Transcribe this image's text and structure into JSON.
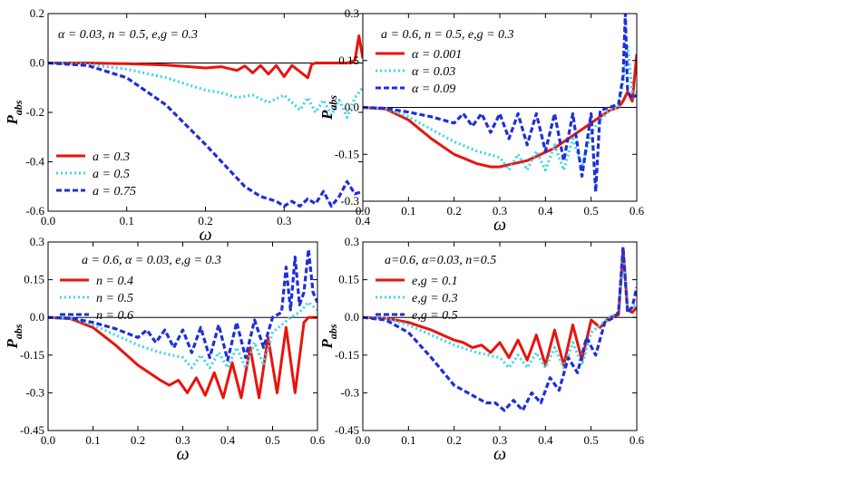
{
  "chart_data": [
    {
      "id": "p1",
      "type": "line",
      "annotation": "α = 0.03, n = 0.5, e,g = 0.3",
      "xlabel": "ω",
      "ylabel": "P",
      "ylabel_sub": "abs",
      "xlim": [
        0,
        0.4
      ],
      "ylim": [
        -0.6,
        0.2
      ],
      "xticks": [
        0.0,
        0.1,
        0.2,
        0.3,
        0.4
      ],
      "yticks": [
        -0.6,
        -0.4,
        -0.2,
        0.0,
        0.2
      ],
      "xtick_labels": [
        "0.0",
        "0.1",
        "0.2",
        "0.3",
        "0.4"
      ],
      "ytick_labels": [
        "-0.6",
        "-0.4",
        "-0.2",
        "0.0",
        "0.2"
      ],
      "legend_position": "bottom-left",
      "zero_line": true,
      "series": [
        {
          "name": "a = 0.3",
          "color": "#e8140c",
          "style": "solid",
          "x": [
            0,
            0.05,
            0.1,
            0.15,
            0.18,
            0.2,
            0.22,
            0.24,
            0.25,
            0.26,
            0.27,
            0.28,
            0.29,
            0.3,
            0.31,
            0.32,
            0.33,
            0.335,
            0.34,
            0.36,
            0.38,
            0.39,
            0.395,
            0.4
          ],
          "y": [
            0,
            0,
            -0.003,
            -0.008,
            -0.015,
            -0.02,
            -0.015,
            -0.03,
            -0.012,
            -0.04,
            -0.01,
            -0.045,
            -0.01,
            -0.055,
            -0.01,
            -0.035,
            -0.06,
            -0.005,
            0,
            0,
            0,
            0.01,
            0.11,
            0.02
          ]
        },
        {
          "name": "a = 0.5",
          "color": "#3fd4e8",
          "style": "dotted",
          "x": [
            0,
            0.05,
            0.1,
            0.15,
            0.2,
            0.22,
            0.24,
            0.26,
            0.28,
            0.3,
            0.32,
            0.33,
            0.34,
            0.35,
            0.36,
            0.37,
            0.38,
            0.39,
            0.4
          ],
          "y": [
            0,
            -0.005,
            -0.025,
            -0.06,
            -0.11,
            -0.12,
            -0.14,
            -0.13,
            -0.16,
            -0.13,
            -0.19,
            -0.14,
            -0.2,
            -0.15,
            -0.21,
            -0.15,
            -0.22,
            -0.14,
            -0.1
          ]
        },
        {
          "name": "a = 0.75",
          "color": "#1f2fd8",
          "style": "dashed",
          "x": [
            0,
            0.05,
            0.1,
            0.15,
            0.2,
            0.25,
            0.27,
            0.29,
            0.3,
            0.31,
            0.32,
            0.33,
            0.34,
            0.35,
            0.36,
            0.37,
            0.38,
            0.39,
            0.4
          ],
          "y": [
            0,
            -0.01,
            -0.06,
            -0.17,
            -0.33,
            -0.5,
            -0.54,
            -0.56,
            -0.58,
            -0.56,
            -0.58,
            -0.55,
            -0.57,
            -0.52,
            -0.58,
            -0.54,
            -0.48,
            -0.53,
            -0.52
          ]
        }
      ]
    },
    {
      "id": "p2",
      "type": "line",
      "annotation": "a = 0.6, n = 0.5, e,g = 0.3",
      "xlabel": "ω",
      "ylabel": "P",
      "ylabel_sub": "abs",
      "xlim": [
        0,
        0.6
      ],
      "ylim": [
        -0.3,
        0.3
      ],
      "xticks": [
        0.0,
        0.1,
        0.2,
        0.3,
        0.4,
        0.5,
        0.6
      ],
      "yticks": [
        -0.3,
        -0.15,
        0.0,
        0.15,
        0.3
      ],
      "xtick_labels": [
        "0.0",
        "0.1",
        "0.2",
        "0.3",
        "0.4",
        "0.5",
        "0.6"
      ],
      "ytick_labels": [
        "-0.3",
        "-0.15",
        "0.0",
        "0.15",
        "0.3"
      ],
      "legend_position": "top-left",
      "zero_line": true,
      "series": [
        {
          "name": "α = 0.001",
          "color": "#e8140c",
          "style": "solid",
          "x": [
            0,
            0.05,
            0.1,
            0.15,
            0.2,
            0.25,
            0.28,
            0.3,
            0.33,
            0.36,
            0.39,
            0.42,
            0.44,
            0.46,
            0.48,
            0.5,
            0.52,
            0.54,
            0.56,
            0.57,
            0.58,
            0.59,
            0.6
          ],
          "y": [
            0,
            -0.005,
            -0.04,
            -0.1,
            -0.15,
            -0.18,
            -0.19,
            -0.19,
            -0.18,
            -0.17,
            -0.15,
            -0.13,
            -0.11,
            -0.09,
            -0.07,
            -0.05,
            -0.03,
            -0.01,
            0,
            0.02,
            0.05,
            0.02,
            0.17
          ]
        },
        {
          "name": "α = 0.03",
          "color": "#3fd4e8",
          "style": "dotted",
          "x": [
            0,
            0.05,
            0.1,
            0.15,
            0.2,
            0.25,
            0.3,
            0.32,
            0.34,
            0.36,
            0.38,
            0.4,
            0.42,
            0.44,
            0.46,
            0.48,
            0.5,
            0.52,
            0.54,
            0.56,
            0.57,
            0.58,
            0.59,
            0.6
          ],
          "y": [
            0,
            -0.003,
            -0.03,
            -0.07,
            -0.11,
            -0.14,
            -0.16,
            -0.2,
            -0.15,
            -0.2,
            -0.14,
            -0.2,
            -0.12,
            -0.2,
            -0.1,
            -0.19,
            -0.08,
            -0.04,
            -0.01,
            0,
            0.08,
            0.2,
            0.05,
            0.05
          ]
        },
        {
          "name": "α = 0.09",
          "color": "#1f2fd8",
          "style": "dashed",
          "x": [
            0,
            0.05,
            0.1,
            0.15,
            0.2,
            0.22,
            0.24,
            0.26,
            0.28,
            0.3,
            0.32,
            0.34,
            0.36,
            0.38,
            0.4,
            0.42,
            0.44,
            0.46,
            0.48,
            0.5,
            0.51,
            0.52,
            0.54,
            0.56,
            0.57,
            0.575,
            0.58,
            0.59,
            0.6
          ],
          "y": [
            0,
            -0.003,
            -0.015,
            -0.03,
            -0.05,
            -0.02,
            -0.06,
            -0.02,
            -0.08,
            -0.02,
            -0.1,
            -0.02,
            -0.12,
            -0.02,
            -0.14,
            -0.02,
            -0.17,
            -0.02,
            -0.22,
            -0.02,
            -0.27,
            -0.01,
            0,
            0.01,
            0.1,
            0.3,
            0.05,
            0.03,
            0.04
          ]
        }
      ]
    },
    {
      "id": "p3",
      "type": "line",
      "annotation": "a = 0.6, α = 0.03, e,g = 0.3",
      "xlabel": "ω",
      "ylabel": "P",
      "ylabel_sub": "abs",
      "xlim": [
        0,
        0.6
      ],
      "ylim": [
        -0.45,
        0.3
      ],
      "xticks": [
        0.0,
        0.1,
        0.2,
        0.3,
        0.4,
        0.5,
        0.6
      ],
      "yticks": [
        -0.45,
        -0.3,
        -0.15,
        0.0,
        0.15,
        0.3
      ],
      "xtick_labels": [
        "0.0",
        "0.1",
        "0.2",
        "0.3",
        "0.4",
        "0.5",
        "0.6"
      ],
      "ytick_labels": [
        "-0.45",
        "-0.3",
        "-0.15",
        "0.0",
        "0.15",
        "0.3"
      ],
      "legend_position": "top-left",
      "zero_line": true,
      "series": [
        {
          "name": "n = 0.4",
          "color": "#e8140c",
          "style": "solid",
          "x": [
            0,
            0.05,
            0.1,
            0.15,
            0.2,
            0.25,
            0.27,
            0.29,
            0.31,
            0.33,
            0.35,
            0.37,
            0.39,
            0.41,
            0.43,
            0.45,
            0.47,
            0.49,
            0.51,
            0.53,
            0.55,
            0.57,
            0.58,
            0.59,
            0.6
          ],
          "y": [
            0,
            -0.005,
            -0.04,
            -0.11,
            -0.19,
            -0.25,
            -0.27,
            -0.25,
            -0.3,
            -0.24,
            -0.31,
            -0.22,
            -0.32,
            -0.18,
            -0.32,
            -0.12,
            -0.32,
            -0.08,
            -0.3,
            -0.04,
            -0.3,
            -0.02,
            0,
            0,
            0
          ]
        },
        {
          "name": "n = 0.5",
          "color": "#3fd4e8",
          "style": "dotted",
          "x": [
            0,
            0.05,
            0.1,
            0.15,
            0.2,
            0.25,
            0.3,
            0.32,
            0.34,
            0.36,
            0.38,
            0.4,
            0.42,
            0.44,
            0.46,
            0.48,
            0.5,
            0.52,
            0.54,
            0.56,
            0.58,
            0.6
          ],
          "y": [
            0,
            -0.003,
            -0.03,
            -0.07,
            -0.11,
            -0.14,
            -0.16,
            -0.2,
            -0.15,
            -0.2,
            -0.14,
            -0.2,
            -0.12,
            -0.2,
            -0.1,
            -0.19,
            -0.06,
            -0.03,
            0,
            0.02,
            0.06,
            0.03
          ]
        },
        {
          "name": "n = 0.6",
          "color": "#1f2fd8",
          "style": "dashed",
          "x": [
            0,
            0.05,
            0.1,
            0.15,
            0.2,
            0.22,
            0.24,
            0.26,
            0.28,
            0.3,
            0.32,
            0.34,
            0.36,
            0.38,
            0.4,
            0.42,
            0.44,
            0.46,
            0.48,
            0.5,
            0.52,
            0.53,
            0.54,
            0.55,
            0.56,
            0.57,
            0.58,
            0.59,
            0.6
          ],
          "y": [
            0,
            -0.003,
            -0.02,
            -0.045,
            -0.08,
            -0.05,
            -0.1,
            -0.05,
            -0.12,
            -0.05,
            -0.14,
            -0.04,
            -0.16,
            -0.03,
            -0.17,
            -0.02,
            -0.16,
            -0.01,
            -0.12,
            0,
            0.02,
            0.2,
            0.03,
            0.24,
            0.05,
            0.1,
            0.27,
            0.1,
            0.06
          ]
        }
      ]
    },
    {
      "id": "p4",
      "type": "line",
      "annotation": "a=0.6, α=0.03, n=0.5",
      "xlabel": "ω",
      "ylabel": "P",
      "ylabel_sub": "abs",
      "xlim": [
        0,
        0.6
      ],
      "ylim": [
        -0.45,
        0.3
      ],
      "xticks": [
        0.0,
        0.1,
        0.2,
        0.3,
        0.4,
        0.5,
        0.6
      ],
      "yticks": [
        -0.45,
        -0.3,
        -0.15,
        0.0,
        0.15,
        0.3
      ],
      "xtick_labels": [
        "0.0",
        "0.1",
        "0.2",
        "0.3",
        "0.4",
        "0.5",
        "0.6"
      ],
      "ytick_labels": [
        "-0.45",
        "-0.3",
        "-0.15",
        "0.0",
        "0.15",
        "0.3"
      ],
      "legend_position": "top-left",
      "zero_line": true,
      "series": [
        {
          "name": "e,g  = 0.1",
          "color": "#e8140c",
          "style": "solid",
          "x": [
            0,
            0.05,
            0.1,
            0.15,
            0.2,
            0.22,
            0.24,
            0.26,
            0.28,
            0.3,
            0.32,
            0.34,
            0.36,
            0.38,
            0.4,
            0.42,
            0.44,
            0.46,
            0.48,
            0.5,
            0.52,
            0.54,
            0.56,
            0.57,
            0.58,
            0.59,
            0.6
          ],
          "y": [
            0,
            -0.003,
            -0.02,
            -0.05,
            -0.09,
            -0.1,
            -0.12,
            -0.11,
            -0.14,
            -0.1,
            -0.16,
            -0.09,
            -0.17,
            -0.07,
            -0.19,
            -0.05,
            -0.19,
            -0.03,
            -0.17,
            -0.01,
            -0.04,
            0,
            0.01,
            0.27,
            0.03,
            0.02,
            0.04
          ]
        },
        {
          "name": "e,g  = 0.3",
          "color": "#3fd4e8",
          "style": "dotted",
          "x": [
            0,
            0.05,
            0.1,
            0.15,
            0.2,
            0.25,
            0.3,
            0.32,
            0.34,
            0.36,
            0.38,
            0.4,
            0.42,
            0.44,
            0.46,
            0.48,
            0.5,
            0.52,
            0.54,
            0.56,
            0.57,
            0.58,
            0.6
          ],
          "y": [
            0,
            -0.003,
            -0.03,
            -0.07,
            -0.11,
            -0.14,
            -0.16,
            -0.2,
            -0.15,
            -0.2,
            -0.14,
            -0.2,
            -0.12,
            -0.2,
            -0.1,
            -0.19,
            -0.06,
            -0.03,
            0,
            0.02,
            0.24,
            0.03,
            0.05
          ]
        },
        {
          "name": "e,g  = 0.5",
          "color": "#1f2fd8",
          "style": "dashed",
          "x": [
            0,
            0.05,
            0.1,
            0.15,
            0.2,
            0.25,
            0.27,
            0.29,
            0.31,
            0.33,
            0.35,
            0.37,
            0.39,
            0.41,
            0.43,
            0.45,
            0.47,
            0.49,
            0.51,
            0.53,
            0.55,
            0.56,
            0.57,
            0.58,
            0.59,
            0.6
          ],
          "y": [
            0,
            -0.01,
            -0.06,
            -0.16,
            -0.27,
            -0.32,
            -0.34,
            -0.34,
            -0.37,
            -0.33,
            -0.37,
            -0.3,
            -0.34,
            -0.24,
            -0.29,
            -0.16,
            -0.22,
            -0.08,
            -0.15,
            -0.02,
            0,
            0.02,
            0.28,
            0.02,
            0.04,
            0.12
          ]
        }
      ]
    }
  ]
}
